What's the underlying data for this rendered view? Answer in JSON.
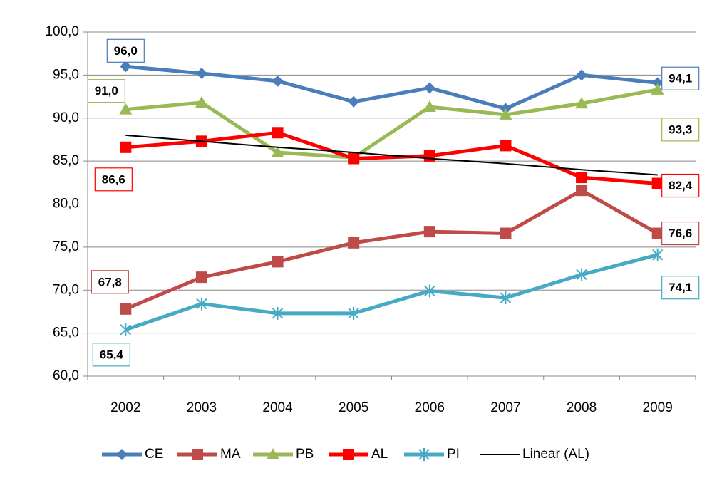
{
  "chart_data": {
    "type": "line",
    "categories": [
      "2002",
      "2003",
      "2004",
      "2005",
      "2006",
      "2007",
      "2008",
      "2009"
    ],
    "ylim": [
      60,
      100
    ],
    "yticks": [
      {
        "value": 60,
        "label": "60,0"
      },
      {
        "value": 65,
        "label": "65,0"
      },
      {
        "value": 70,
        "label": "70,0"
      },
      {
        "value": 75,
        "label": "75,0"
      },
      {
        "value": 80,
        "label": "80,0"
      },
      {
        "value": 85,
        "label": "85,0"
      },
      {
        "value": 90,
        "label": "90,0"
      },
      {
        "value": 95,
        "label": "95,0"
      },
      {
        "value": 100,
        "label": "100,0"
      }
    ],
    "grid": true,
    "legend": "bottom",
    "series": [
      {
        "name": "CE",
        "color": "#4a7ebb",
        "marker": "diamond",
        "values": [
          96.0,
          95.2,
          94.3,
          91.9,
          93.5,
          91.1,
          95.0,
          94.1
        ],
        "value_labels": [
          "96,0",
          null,
          null,
          null,
          null,
          null,
          null,
          "94,1"
        ]
      },
      {
        "name": "MA",
        "color": "#be4b48",
        "marker": "square",
        "values": [
          67.8,
          71.5,
          73.3,
          75.5,
          76.8,
          76.6,
          81.6,
          76.6
        ],
        "value_labels": [
          "67,8",
          null,
          null,
          null,
          null,
          null,
          null,
          "76,6"
        ]
      },
      {
        "name": "PB",
        "color": "#98b954",
        "marker": "triangle",
        "values": [
          91.0,
          91.8,
          86.0,
          85.4,
          91.3,
          90.4,
          91.7,
          93.3
        ],
        "value_labels": [
          "91,0",
          null,
          null,
          null,
          null,
          null,
          null,
          "93,3"
        ]
      },
      {
        "name": "AL",
        "color": "#ff0000",
        "marker": "square",
        "values": [
          86.6,
          87.3,
          88.3,
          85.3,
          85.6,
          86.8,
          83.1,
          82.4
        ],
        "value_labels": [
          "86,6",
          null,
          null,
          null,
          null,
          null,
          null,
          "82,4"
        ]
      },
      {
        "name": "PI",
        "color": "#46aac5",
        "marker": "asterisk",
        "values": [
          65.4,
          68.4,
          67.3,
          67.3,
          69.9,
          69.1,
          71.8,
          74.1
        ],
        "value_labels": [
          "65,4",
          null,
          null,
          null,
          null,
          null,
          null,
          "74,1"
        ]
      },
      {
        "name": "Linear (AL)",
        "color": "#000000",
        "marker": "none",
        "values": [
          88.0,
          87.3,
          86.6,
          86.0,
          85.3,
          84.7,
          84.0,
          83.4
        ]
      }
    ]
  }
}
